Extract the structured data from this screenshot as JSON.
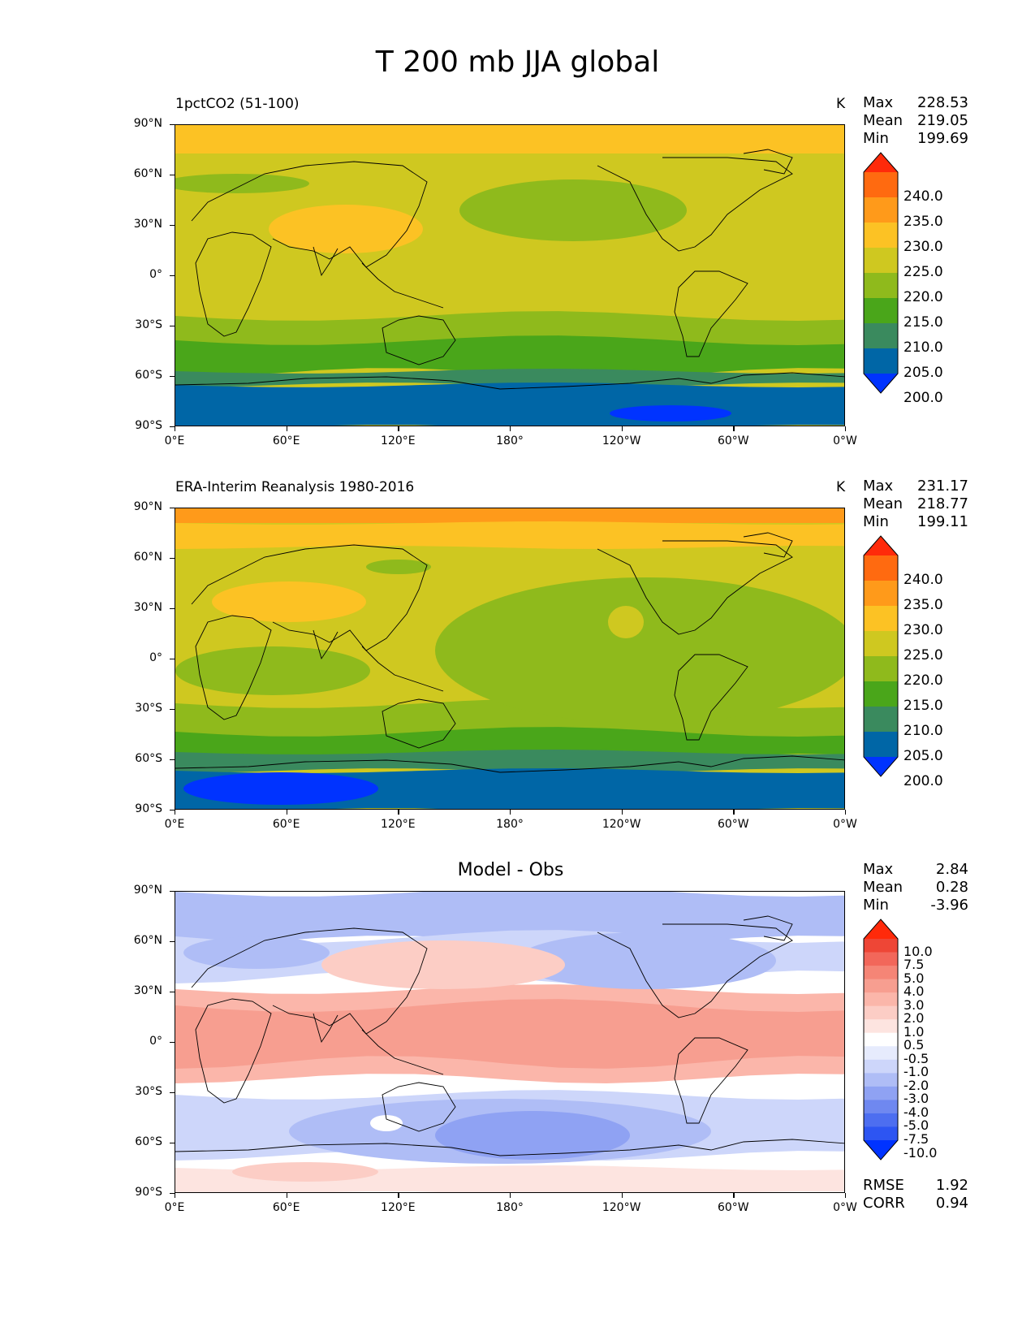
{
  "figure": {
    "title": "T 200 mb JJA global"
  },
  "axes": {
    "lat_ticks": [
      "90°N",
      "60°N",
      "30°N",
      "0°",
      "30°S",
      "60°S",
      "90°S"
    ],
    "lon_ticks": [
      "0°E",
      "60°E",
      "120°E",
      "180°",
      "120°W",
      "60°W",
      "0°W"
    ]
  },
  "panels": [
    {
      "title": "1pctCO2 (51-100)",
      "units": "K",
      "stats": [
        {
          "label": "Max",
          "value": "228.53"
        },
        {
          "label": "Mean",
          "value": "219.05"
        },
        {
          "label": "Min",
          "value": "199.69"
        }
      ],
      "colorbar_labels": [
        "240.0",
        "235.0",
        "230.0",
        "225.0",
        "220.0",
        "215.0",
        "210.0",
        "205.0",
        "200.0"
      ]
    },
    {
      "title": "ERA-Interim Reanalysis 1980-2016",
      "units": "K",
      "stats": [
        {
          "label": "Max",
          "value": "231.17"
        },
        {
          "label": "Mean",
          "value": "218.77"
        },
        {
          "label": "Min",
          "value": "199.11"
        }
      ],
      "colorbar_labels": [
        "240.0",
        "235.0",
        "230.0",
        "225.0",
        "220.0",
        "215.0",
        "210.0",
        "205.0",
        "200.0"
      ]
    },
    {
      "title": "Model - Obs",
      "units": "",
      "stats": [
        {
          "label": "Max",
          "value": "2.84"
        },
        {
          "label": "Mean",
          "value": "0.28"
        },
        {
          "label": "Min",
          "value": "-3.96"
        }
      ],
      "colorbar_labels": [
        "10.0",
        "7.5",
        "5.0",
        "4.0",
        "3.0",
        "2.0",
        "1.0",
        "0.5",
        "-0.5",
        "-1.0",
        "-2.0",
        "-3.0",
        "-4.0",
        "-5.0",
        "-7.5",
        "-10.0"
      ],
      "metrics": [
        {
          "label": "RMSE",
          "value": "1.92"
        },
        {
          "label": "CORR",
          "value": "0.94"
        }
      ]
    }
  ],
  "colors": {
    "abs_levels": [
      "#0033ff",
      "#0066a6",
      "#3a8a5e",
      "#4aa61a",
      "#8fba1c",
      "#cfc820",
      "#fcc224",
      "#ff9a1a",
      "#ff6a10",
      "#ff2a0a"
    ],
    "diff_levels": [
      "#0033ff",
      "#2d55f2",
      "#4d6ef0",
      "#6f88f0",
      "#8fa2f3",
      "#afbdf6",
      "#cdd6fa",
      "#e6ebfd",
      "#ffffff",
      "#fde4e0",
      "#fccdc5",
      "#fbb6aa",
      "#f79e90",
      "#f58576",
      "#f2675a",
      "#ee4636",
      "#ff2a0a"
    ]
  }
}
